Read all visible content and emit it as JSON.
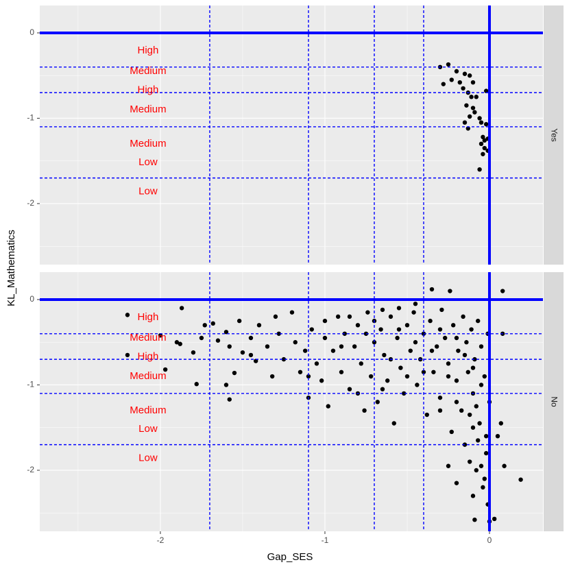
{
  "chart_data": {
    "type": "scatter",
    "x_label": "Gap_SES",
    "y_label": "KL_Mathematics",
    "xlim": [
      -2.733,
      0.325
    ],
    "ylim": [
      -2.715,
      0.321
    ],
    "xticks": [
      -2,
      -1,
      0
    ],
    "yticks": [
      -2,
      -1,
      0
    ],
    "xminor": [
      -2.5,
      -1.5,
      -0.5
    ],
    "yminor": [
      -2.5,
      -1.5,
      -0.5
    ],
    "color": "#000000",
    "line_color": "#0000ff",
    "label_color": "#ff0000",
    "hlines": [
      -0.4,
      -0.7,
      -1.1,
      -1.7
    ],
    "vlines": [
      -1.7,
      -1.1,
      -0.7,
      -0.4
    ],
    "solid_hline": 0,
    "solid_vline": 0,
    "annotations": [
      {
        "text": "High",
        "x": -2.075,
        "y": -0.21
      },
      {
        "text": "Medium",
        "x": -2.075,
        "y": -0.45
      },
      {
        "text": "High",
        "x": -2.075,
        "y": -0.67
      },
      {
        "text": "Medium",
        "x": -2.075,
        "y": -0.9
      },
      {
        "text": "Medium",
        "x": -2.075,
        "y": -1.3
      },
      {
        "text": "Low",
        "x": -2.075,
        "y": -1.52
      },
      {
        "text": "Low",
        "x": -2.075,
        "y": -1.86
      }
    ],
    "panels": [
      {
        "strip": "Yes",
        "points": [
          [
            -0.25,
            -0.37
          ],
          [
            -0.3,
            -0.4
          ],
          [
            -0.2,
            -0.45
          ],
          [
            -0.23,
            -0.55
          ],
          [
            -0.15,
            -0.48
          ],
          [
            -0.12,
            -0.5
          ],
          [
            -0.18,
            -0.58
          ],
          [
            -0.28,
            -0.6
          ],
          [
            -0.16,
            -0.65
          ],
          [
            -0.1,
            -0.58
          ],
          [
            -0.13,
            -0.7
          ],
          [
            -0.08,
            -0.75
          ],
          [
            -0.11,
            -0.75
          ],
          [
            -0.02,
            -0.68
          ],
          [
            -0.14,
            -0.85
          ],
          [
            -0.1,
            -0.88
          ],
          [
            -0.09,
            -0.93
          ],
          [
            -0.12,
            -0.98
          ],
          [
            -0.06,
            -1.0
          ],
          [
            -0.15,
            -1.05
          ],
          [
            -0.05,
            -1.05
          ],
          [
            -0.02,
            -1.07
          ],
          [
            -0.13,
            -1.12
          ],
          [
            -0.04,
            -1.22
          ],
          [
            -0.03,
            -1.26
          ],
          [
            -0.01,
            -1.24
          ],
          [
            -0.05,
            -1.3
          ],
          [
            -0.03,
            -1.35
          ],
          [
            -0.01,
            -1.38
          ],
          [
            -0.04,
            -1.42
          ],
          [
            -0.06,
            -1.6
          ]
        ]
      },
      {
        "strip": "No",
        "points": [
          [
            -2.2,
            -0.18
          ],
          [
            -2.2,
            -0.65
          ],
          [
            -1.87,
            -0.1
          ],
          [
            -2.0,
            -0.42
          ],
          [
            -1.97,
            -0.82
          ],
          [
            -1.88,
            -0.52
          ],
          [
            -1.8,
            -0.62
          ],
          [
            -1.78,
            -0.99
          ],
          [
            -1.73,
            -0.3
          ],
          [
            -1.68,
            -0.28
          ],
          [
            -1.65,
            -0.48
          ],
          [
            -1.6,
            -0.38
          ],
          [
            -1.58,
            -0.55
          ],
          [
            -1.55,
            -0.86
          ],
          [
            -1.52,
            -0.25
          ],
          [
            -1.5,
            -0.62
          ],
          [
            -1.45,
            -0.45
          ],
          [
            -1.42,
            -0.72
          ],
          [
            -1.6,
            -1.0
          ],
          [
            -1.58,
            -1.17
          ],
          [
            -1.4,
            -0.3
          ],
          [
            -1.35,
            -0.55
          ],
          [
            -1.32,
            -0.9
          ],
          [
            -1.28,
            -0.4
          ],
          [
            -1.25,
            -0.7
          ],
          [
            -1.2,
            -0.15
          ],
          [
            -1.18,
            -0.5
          ],
          [
            -1.15,
            -0.85
          ],
          [
            -1.12,
            -0.6
          ],
          [
            -1.1,
            -1.15
          ],
          [
            -1.08,
            -0.35
          ],
          [
            -1.05,
            -0.75
          ],
          [
            -1.02,
            -0.95
          ],
          [
            -1.0,
            -0.45
          ],
          [
            -0.98,
            -1.25
          ],
          [
            -0.95,
            -0.6
          ],
          [
            -0.92,
            -0.2
          ],
          [
            -0.9,
            -0.85
          ],
          [
            -0.88,
            -0.4
          ],
          [
            -0.85,
            -1.05
          ],
          [
            -0.82,
            -0.55
          ],
          [
            -0.8,
            -0.3
          ],
          [
            -0.78,
            -0.75
          ],
          [
            -0.76,
            -1.3
          ],
          [
            -0.74,
            -0.15
          ],
          [
            -0.72,
            -0.9
          ],
          [
            -0.7,
            -0.5
          ],
          [
            -0.68,
            -1.2
          ],
          [
            -0.66,
            -0.35
          ],
          [
            -0.64,
            -0.65
          ],
          [
            -0.62,
            -0.95
          ],
          [
            -0.6,
            -0.2
          ],
          [
            -0.58,
            -1.45
          ],
          [
            -0.56,
            -0.45
          ],
          [
            -0.54,
            -0.8
          ],
          [
            -0.52,
            -1.1
          ],
          [
            -0.5,
            -0.3
          ],
          [
            -0.48,
            -0.6
          ],
          [
            -0.46,
            -0.15
          ],
          [
            -0.44,
            -1.0
          ],
          [
            -0.42,
            -0.7
          ],
          [
            -0.4,
            -0.4
          ],
          [
            -0.38,
            -1.35
          ],
          [
            -0.36,
            -0.25
          ],
          [
            -0.34,
            -0.85
          ],
          [
            -0.32,
            -0.55
          ],
          [
            -0.3,
            -1.15
          ],
          [
            -0.29,
            -0.12
          ],
          [
            -0.27,
            -0.45
          ],
          [
            -0.25,
            -0.75
          ],
          [
            -0.23,
            -1.55
          ],
          [
            -0.22,
            -0.3
          ],
          [
            -0.2,
            -0.95
          ],
          [
            -0.19,
            -0.6
          ],
          [
            -0.17,
            -1.3
          ],
          [
            -0.16,
            -0.2
          ],
          [
            -0.15,
            -1.7
          ],
          [
            -0.14,
            -0.5
          ],
          [
            -0.13,
            -0.85
          ],
          [
            -0.12,
            -1.9
          ],
          [
            -0.11,
            -0.35
          ],
          [
            -0.1,
            -1.1
          ],
          [
            -0.09,
            -0.7
          ],
          [
            -0.08,
            -2.0
          ],
          [
            -0.07,
            -0.25
          ],
          [
            -0.06,
            -1.45
          ],
          [
            -0.05,
            -0.55
          ],
          [
            -0.04,
            -2.2
          ],
          [
            -0.03,
            -0.9
          ],
          [
            -0.02,
            -1.8
          ],
          [
            -0.01,
            -0.4
          ],
          [
            -0.01,
            -2.4
          ],
          [
            0,
            -1.2
          ],
          [
            0,
            -2.6
          ],
          [
            -0.02,
            -1.6
          ],
          [
            -0.03,
            -2.1
          ],
          [
            -0.05,
            -1.95
          ],
          [
            -0.07,
            -1.65
          ],
          [
            -0.1,
            -1.5
          ],
          [
            -0.12,
            -1.35
          ],
          [
            0.08,
            0.1
          ],
          [
            -0.24,
            0.1
          ],
          [
            -0.35,
            0.12
          ],
          [
            0.08,
            -0.4
          ],
          [
            0.07,
            -1.45
          ],
          [
            0.05,
            -1.6
          ],
          [
            0.09,
            -1.95
          ],
          [
            0.19,
            -2.11
          ],
          [
            -0.09,
            -2.58
          ],
          [
            0.03,
            -2.57
          ],
          [
            -0.1,
            -2.3
          ],
          [
            -0.2,
            -2.15
          ],
          [
            -0.25,
            -1.95
          ],
          [
            -0.55,
            -0.1
          ],
          [
            -0.45,
            -0.05
          ],
          [
            -0.65,
            -0.12
          ],
          [
            -0.75,
            -0.4
          ],
          [
            -0.85,
            -0.2
          ],
          [
            -1.0,
            -0.25
          ],
          [
            -0.9,
            -0.55
          ],
          [
            -0.6,
            -0.7
          ],
          [
            -0.5,
            -0.9
          ],
          [
            -0.4,
            -0.85
          ],
          [
            -0.3,
            -0.35
          ],
          [
            -0.2,
            -0.45
          ],
          [
            -0.15,
            -0.65
          ],
          [
            -0.1,
            -0.8
          ],
          [
            -0.05,
            -1.0
          ],
          [
            -0.35,
            -0.6
          ],
          [
            -0.25,
            -0.9
          ],
          [
            -0.45,
            -0.5
          ],
          [
            -0.55,
            -0.35
          ],
          [
            -0.7,
            -0.25
          ],
          [
            -1.3,
            -0.2
          ],
          [
            -1.45,
            -0.65
          ],
          [
            -1.75,
            -0.45
          ],
          [
            -1.9,
            -0.5
          ],
          [
            -1.1,
            -0.9
          ],
          [
            -0.8,
            -1.1
          ],
          [
            -0.65,
            -1.05
          ],
          [
            -0.3,
            -1.3
          ],
          [
            -0.2,
            -1.2
          ],
          [
            -0.08,
            -1.25
          ]
        ]
      }
    ]
  }
}
